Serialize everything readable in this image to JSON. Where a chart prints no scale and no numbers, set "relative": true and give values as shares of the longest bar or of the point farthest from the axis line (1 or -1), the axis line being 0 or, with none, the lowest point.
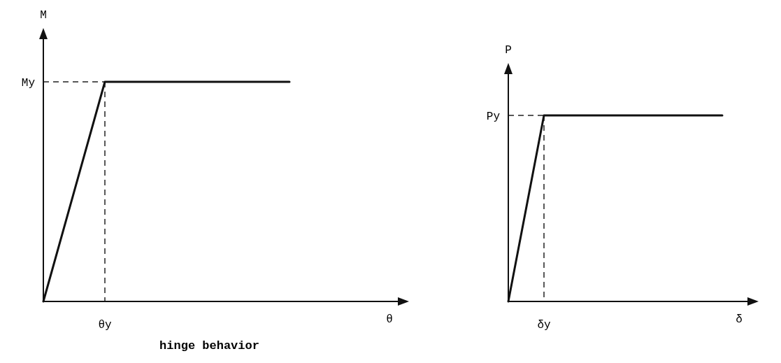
{
  "chart_data": [
    {
      "type": "line",
      "relative": true,
      "xlabel": "θ",
      "ylabel": "M",
      "categories": [
        null,
        null,
        null,
        null,
        null
      ],
      "series": [
        {
          "color": "#111111",
          "values": [
            0,
            1,
            1,
            1,
            1
          ]
        }
      ],
      "ref_lines": [
        {
          "axis": "y",
          "value": 1,
          "label": "My",
          "line_style": "dashed"
        }
      ],
      "annotations": [
        "θy",
        "hinge behavior"
      ]
    },
    {
      "type": "line",
      "relative": true,
      "xlabel": "δ",
      "ylabel": "P",
      "categories": [
        null,
        null,
        null,
        null,
        null,
        null,
        null
      ],
      "series": [
        {
          "color": "#111111",
          "values": [
            0,
            1,
            1,
            1,
            1,
            1,
            1
          ]
        }
      ],
      "ref_lines": [
        {
          "axis": "y",
          "value": 1,
          "label": "Py",
          "line_style": "dashed"
        }
      ],
      "annotations": [
        "δy"
      ]
    }
  ]
}
